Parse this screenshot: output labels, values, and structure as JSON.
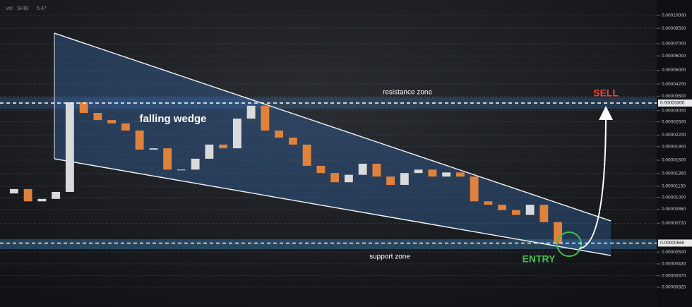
{
  "chart_data": {
    "type": "candlestick",
    "header": "Vol · SHIB",
    "header_value": "5.47",
    "annotations": {
      "pattern": "falling wedge",
      "resistance": "resistance zone",
      "support": "support zone",
      "sell": "SELL",
      "entry": "ENTRY"
    },
    "open": [
      1.05e-05,
      1.11e-05,
      9.5e-06,
      9.8e-06,
      1.07e-05,
      3.33e-05,
      2.91e-05,
      2.66e-05,
      2.55e-05,
      2.33e-05,
      1.83e-05,
      1.86e-05,
      1.42e-05,
      1.42e-05,
      1.63e-05,
      1.95e-05,
      1.86e-05,
      2.71e-05,
      3.19e-05,
      2.33e-05,
      2.13e-05,
      1.95e-05,
      1.49e-05,
      1.36e-05,
      1.21e-05,
      1.33e-05,
      1.53e-05,
      1.3e-05,
      1.17e-05,
      1.36e-05,
      1.42e-05,
      1.3e-05,
      1.37e-05,
      1.3e-05,
      9.5e-06,
      9.1e-06,
      8.5e-06,
      8e-06,
      9.1e-06,
      7.3e-06
    ],
    "close": [
      1.11e-05,
      9.5e-06,
      9.8e-06,
      1.07e-05,
      3.33e-05,
      2.91e-05,
      2.66e-05,
      2.55e-05,
      2.33e-05,
      1.83e-05,
      1.86e-05,
      1.42e-05,
      1.42e-05,
      1.63e-05,
      1.95e-05,
      1.86e-05,
      2.71e-05,
      3.19e-05,
      2.33e-05,
      2.13e-05,
      1.95e-05,
      1.49e-05,
      1.36e-05,
      1.21e-05,
      1.33e-05,
      1.53e-05,
      1.3e-05,
      1.17e-05,
      1.36e-05,
      1.42e-05,
      1.3e-05,
      1.37e-05,
      1.3e-05,
      9.5e-06,
      9.1e-06,
      8.5e-06,
      8e-06,
      9.1e-06,
      7.3e-06,
      5.6e-06
    ],
    "up_color": "#d8dadc",
    "down_color": "#e0823c",
    "log_scale": true,
    "grid": true,
    "ylim": [
      3.2e-06,
      0.0001
    ],
    "yticks": [
      {
        "value": 0.0001,
        "label": "0.00010000"
      },
      {
        "value": 8.5e-05,
        "label": "0.00008500"
      },
      {
        "value": 7e-05,
        "label": "0.00007000"
      },
      {
        "value": 6e-05,
        "label": "0.00006000"
      },
      {
        "value": 5e-05,
        "label": "0.00005000"
      },
      {
        "value": 4.2e-05,
        "label": "0.00004200"
      },
      {
        "value": 3.6e-05,
        "label": "0.00003600"
      },
      {
        "value": 3e-05,
        "label": "0.00003000"
      },
      {
        "value": 2.6e-05,
        "label": "0.00002600"
      },
      {
        "value": 2.2e-05,
        "label": "0.00002200"
      },
      {
        "value": 1.9e-05,
        "label": "0.00001900"
      },
      {
        "value": 1.6e-05,
        "label": "0.00001600"
      },
      {
        "value": 1.35e-05,
        "label": "0.00001350"
      },
      {
        "value": 1.15e-05,
        "label": "0.00001150"
      },
      {
        "value": 1e-05,
        "label": "0.00001000"
      },
      {
        "value": 8.6e-06,
        "label": "0.00000860"
      },
      {
        "value": 7.2e-06,
        "label": "0.00000720"
      },
      {
        "value": 5e-06,
        "label": "0.00000500"
      },
      {
        "value": 4.3e-06,
        "label": "0.00000430"
      },
      {
        "value": 3.7e-06,
        "label": "0.00000370"
      },
      {
        "value": 3.2e-06,
        "label": "0.00000320"
      }
    ],
    "resistance_level": {
      "value": 3.3e-05,
      "label": "0.00003300"
    },
    "support_level": {
      "value": 5.6e-06,
      "label": "0.00000560"
    }
  }
}
